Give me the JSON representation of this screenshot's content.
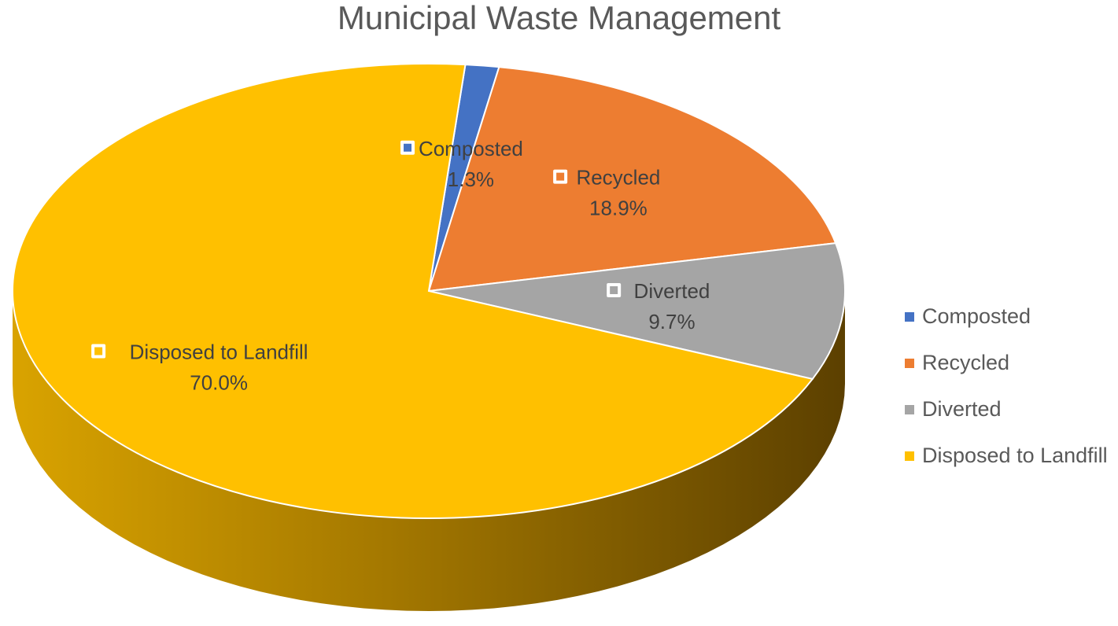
{
  "chart_data": {
    "type": "pie",
    "title": "Municipal Waste Management",
    "categories": [
      "Composted",
      "Recycled",
      "Diverted",
      "Disposed to Landfill"
    ],
    "values": [
      1.3,
      18.9,
      9.7,
      70.0
    ],
    "value_labels": [
      "1.3%",
      "18.9%",
      "9.7%",
      "70.0%"
    ],
    "colors": [
      "#4472C4",
      "#ED7D31",
      "#A5A5A5",
      "#FFC000"
    ],
    "legend_position": "right",
    "style": "3d"
  }
}
